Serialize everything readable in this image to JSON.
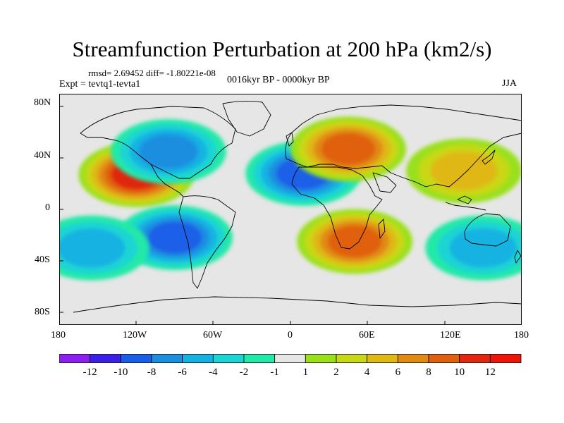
{
  "title": "Streamfunction Perturbation at 200 hPa (km2/s)",
  "stats": "rmsd= 2.69452 diff= -1.80221e-08",
  "experiment": "Expt = tevtq1-tevta1",
  "period": "0016kyr BP - 0000kyr BP",
  "season": "JJA",
  "axes": {
    "lat_labels": [
      "80N",
      "40N",
      "0",
      "40S",
      "80S"
    ],
    "lon_labels": [
      "180",
      "120W",
      "60W",
      "0",
      "60E",
      "120E",
      "180"
    ]
  },
  "colorbar": {
    "labels": [
      "-12",
      "-10",
      "-8",
      "-6",
      "-4",
      "-2",
      "-1",
      "1",
      "2",
      "4",
      "6",
      "8",
      "10",
      "12"
    ],
    "colors": [
      "#8c1fef",
      "#3a1fe6",
      "#1a5ee8",
      "#1a8ee0",
      "#13b2e2",
      "#1bd4d4",
      "#22e8a8",
      "#e6e6e6",
      "#9ae01a",
      "#c8d816",
      "#e0b812",
      "#e08a12",
      "#e0600f",
      "#e0280f",
      "#ee1408"
    ]
  },
  "map_data": {
    "variable": "200 hPa streamfunction perturbation",
    "units": "km2/s",
    "anomalies": [
      {
        "name": "north-america-positive",
        "lon": -120,
        "lat": 27,
        "value": 10
      },
      {
        "name": "north-pacific-negative",
        "lon": -95,
        "lat": 45,
        "value": -6
      },
      {
        "name": "south-america-negative",
        "lon": -90,
        "lat": -22,
        "value": -8
      },
      {
        "name": "south-pacific-negative",
        "lon": -155,
        "lat": -30,
        "value": -4
      },
      {
        "name": "north-atlantic-negative",
        "lon": 10,
        "lat": 28,
        "value": -9
      },
      {
        "name": "eurasia-positive",
        "lon": 45,
        "lat": 47,
        "value": 8
      },
      {
        "name": "southern-africa-positive",
        "lon": 50,
        "lat": -25,
        "value": 9
      },
      {
        "name": "east-asia-positive",
        "lon": 135,
        "lat": 30,
        "value": 4
      },
      {
        "name": "australia-negative",
        "lon": 150,
        "lat": -30,
        "value": -5
      }
    ]
  }
}
